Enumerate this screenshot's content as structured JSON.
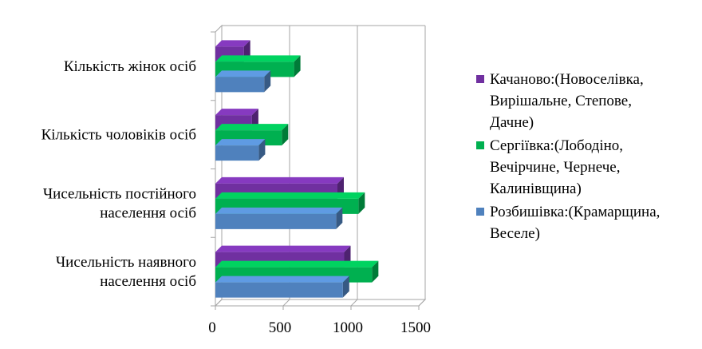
{
  "chart_data": {
    "type": "bar",
    "orientation": "horizontal",
    "style": "3d-clustered",
    "categories": [
      [
        "Чисельність наявного",
        "населення осіб"
      ],
      [
        "Чисельність постійного",
        "населення осіб"
      ],
      [
        "Кількість чоловіків осіб"
      ],
      [
        "Кількість жінок осіб"
      ]
    ],
    "series": [
      {
        "name": "Розбишівка:(Крамарщина, Веселе)",
        "legend_lines": [
          "Розбишівка:(Крамарщина,",
          "Веселе)"
        ],
        "color": "#4f81bd",
        "values": [
          940,
          890,
          320,
          360
        ]
      },
      {
        "name": "Сергіївка:(Лободіно, Вечірчине, Чернече, Калинівщина)",
        "legend_lines": [
          "Сергіївка:(Лободіно,",
          "Вечірчине, Чернече,",
          "Калинівщина)"
        ],
        "color": "#00b050",
        "values": [
          1155,
          1055,
          490,
          580
        ]
      },
      {
        "name": "Качаново:(Новоселівка, Вирішальне, Степове, Дачне)",
        "legend_lines": [
          "Качаново:(Новоселівка,",
          "Вирішальне, Степове,",
          "Дачне)"
        ],
        "color": "#7030a0",
        "values": [
          950,
          900,
          270,
          210
        ]
      }
    ],
    "xlim": [
      0,
      1500
    ],
    "xticks": [
      "0",
      "500",
      "1000",
      "1500"
    ],
    "grid": true,
    "legend_position": "right",
    "title": "",
    "xlabel": "",
    "ylabel": ""
  }
}
